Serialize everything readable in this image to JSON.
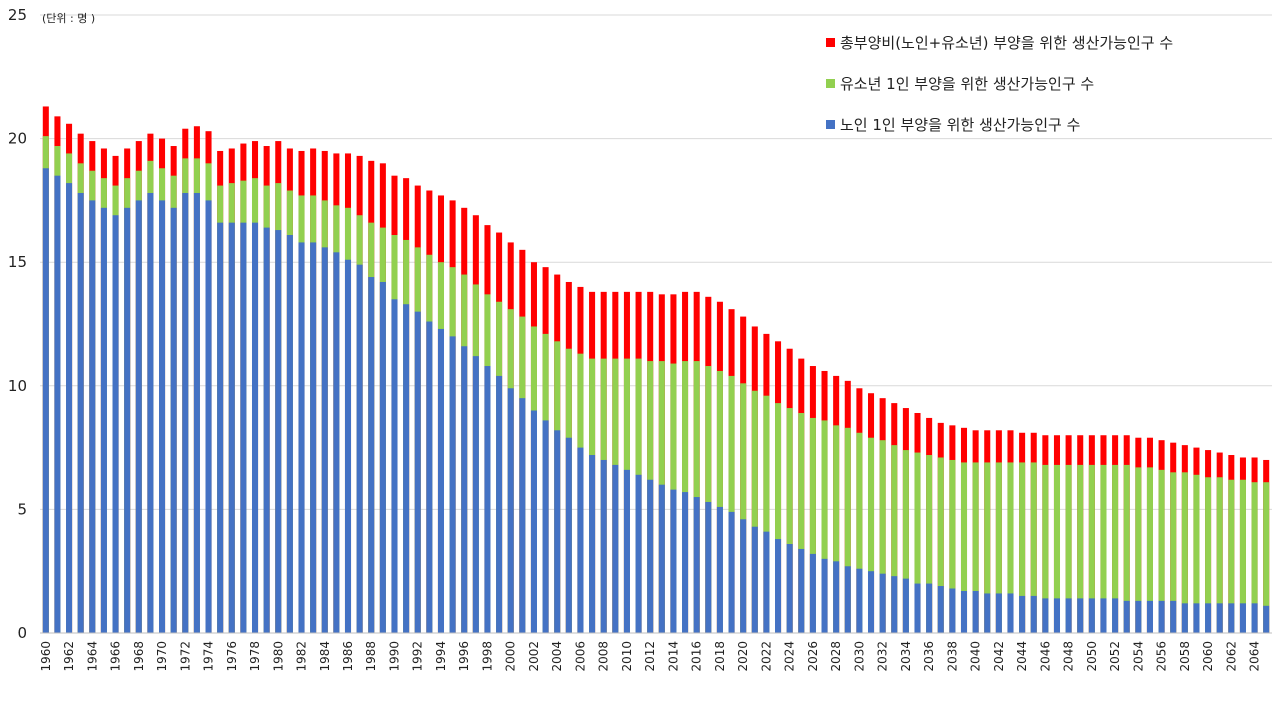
{
  "chart_data": {
    "type": "bar",
    "stacked": true,
    "unit_label": "(단위 : 명 )",
    "ylim": [
      0,
      25
    ],
    "y_ticks": [
      "0",
      "5",
      "10",
      "15",
      "20",
      "25"
    ],
    "grid": true,
    "legend_position": "top-right",
    "x_tick_labels": [
      "1960",
      "1962",
      "1964",
      "1966",
      "1968",
      "1970",
      "1972",
      "1974",
      "1976",
      "1978",
      "1980",
      "1982",
      "1984",
      "1986",
      "1988",
      "1990",
      "1992",
      "1994",
      "1996",
      "1998",
      "2000",
      "2002",
      "2004",
      "2006",
      "2008",
      "2010",
      "2012",
      "2014",
      "2016",
      "2018",
      "2020",
      "2022",
      "2024",
      "2026",
      "2028",
      "2030",
      "2032",
      "2034",
      "2036",
      "2038",
      "2040",
      "2042",
      "2044",
      "2046",
      "2048",
      "2050",
      "2052",
      "2054",
      "2056",
      "2058",
      "2060",
      "2062",
      "2064"
    ],
    "x_start": 1960,
    "x_end": 2065,
    "legend": [
      {
        "name": "총부양비(노인+유소년) 부양을 위한 생산가능인구 수",
        "color": "#ff0000"
      },
      {
        "name": "유소년 1인 부양을 위한 생산가능인구 수",
        "color": "#92d050"
      },
      {
        "name": "노인 1인 부양을 위한 생산가능인구 수",
        "color": "#4472c4"
      }
    ],
    "totals": [
      21.3,
      20.9,
      20.6,
      20.2,
      19.9,
      19.6,
      19.3,
      19.6,
      19.9,
      20.2,
      20.0,
      19.7,
      20.4,
      20.5,
      20.3,
      19.5,
      19.6,
      19.8,
      19.9,
      19.7,
      19.9,
      19.6,
      19.5,
      19.6,
      19.5,
      19.4,
      19.4,
      19.3,
      19.1,
      19.0,
      18.5,
      18.4,
      18.1,
      17.9,
      17.7,
      17.5,
      17.2,
      16.9,
      16.5,
      16.2,
      15.8,
      15.5,
      15.0,
      14.8,
      14.5,
      14.2,
      14.0,
      13.8,
      13.8,
      13.8,
      13.8,
      13.8,
      13.8,
      13.7,
      13.7,
      13.8,
      13.8,
      13.6,
      13.4,
      13.1,
      12.8,
      12.4,
      12.1,
      11.8,
      11.5,
      11.1,
      10.8,
      10.6,
      10.4,
      10.2,
      9.9,
      9.7,
      9.5,
      9.3,
      9.1,
      8.9,
      8.7,
      8.5,
      8.4,
      8.3,
      8.2,
      8.2,
      8.2,
      8.2,
      8.1,
      8.1,
      8.0,
      8.0,
      8.0,
      8.0,
      8.0,
      8.0,
      8.0,
      8.0,
      7.9,
      7.9,
      7.8,
      7.7,
      7.6,
      7.5,
      7.4,
      7.3,
      7.2,
      7.1,
      7.1,
      7.0
    ],
    "youth_component": [
      20.1,
      19.7,
      19.4,
      19.0,
      18.7,
      18.4,
      18.1,
      18.4,
      18.7,
      19.1,
      18.8,
      18.5,
      19.2,
      19.2,
      19.0,
      18.1,
      18.2,
      18.3,
      18.4,
      18.1,
      18.2,
      17.9,
      17.7,
      17.7,
      17.5,
      17.3,
      17.2,
      16.9,
      16.6,
      16.4,
      16.1,
      15.9,
      15.6,
      15.3,
      15.0,
      14.8,
      14.5,
      14.1,
      13.7,
      13.4,
      13.1,
      12.8,
      12.4,
      12.1,
      11.8,
      11.5,
      11.3,
      11.1,
      11.1,
      11.1,
      11.1,
      11.1,
      11.0,
      11.0,
      10.9,
      11.0,
      11.0,
      10.8,
      10.6,
      10.4,
      10.1,
      9.8,
      9.6,
      9.3,
      9.1,
      8.9,
      8.7,
      8.6,
      8.4,
      8.3,
      8.1,
      7.9,
      7.8,
      7.6,
      7.4,
      7.3,
      7.2,
      7.1,
      7.0,
      6.9,
      6.9,
      6.9,
      6.9,
      6.9,
      6.9,
      6.9,
      6.8,
      6.8,
      6.8,
      6.8,
      6.8,
      6.8,
      6.8,
      6.8,
      6.7,
      6.7,
      6.6,
      6.5,
      6.5,
      6.4,
      6.3,
      6.3,
      6.2,
      6.2,
      6.1,
      6.1
    ],
    "elderly_component": [
      18.8,
      18.5,
      18.2,
      17.8,
      17.5,
      17.2,
      16.9,
      17.2,
      17.5,
      17.8,
      17.5,
      17.2,
      17.8,
      17.8,
      17.5,
      16.6,
      16.6,
      16.6,
      16.6,
      16.4,
      16.3,
      16.1,
      15.8,
      15.8,
      15.6,
      15.4,
      15.1,
      14.9,
      14.4,
      14.2,
      13.5,
      13.3,
      13.0,
      12.6,
      12.3,
      12.0,
      11.6,
      11.2,
      10.8,
      10.4,
      9.9,
      9.5,
      9.0,
      8.6,
      8.2,
      7.9,
      7.5,
      7.2,
      7.0,
      6.8,
      6.6,
      6.4,
      6.2,
      6.0,
      5.8,
      5.7,
      5.5,
      5.3,
      5.1,
      4.9,
      4.6,
      4.3,
      4.1,
      3.8,
      3.6,
      3.4,
      3.2,
      3.0,
      2.9,
      2.7,
      2.6,
      2.5,
      2.4,
      2.3,
      2.2,
      2.0,
      2.0,
      1.9,
      1.8,
      1.7,
      1.7,
      1.6,
      1.6,
      1.6,
      1.5,
      1.5,
      1.4,
      1.4,
      1.4,
      1.4,
      1.4,
      1.4,
      1.4,
      1.3,
      1.3,
      1.3,
      1.3,
      1.3,
      1.2,
      1.2,
      1.2,
      1.2,
      1.2,
      1.2,
      1.2,
      1.1
    ]
  }
}
